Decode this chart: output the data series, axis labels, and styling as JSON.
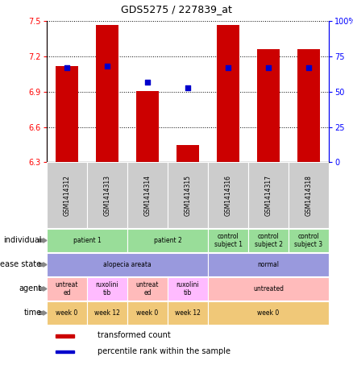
{
  "title": "GDS5275 / 227839_at",
  "samples": [
    "GSM1414312",
    "GSM1414313",
    "GSM1414314",
    "GSM1414315",
    "GSM1414316",
    "GSM1414317",
    "GSM1414318"
  ],
  "bar_values": [
    7.12,
    7.47,
    6.91,
    6.45,
    7.47,
    7.26,
    7.26
  ],
  "bar_base": 6.3,
  "percentile_values": [
    67,
    68,
    57,
    53,
    67,
    67,
    67
  ],
  "ylim_left": [
    6.3,
    7.5
  ],
  "ylim_right": [
    0,
    100
  ],
  "yticks_left": [
    6.3,
    6.6,
    6.9,
    7.2,
    7.5
  ],
  "yticks_right": [
    0,
    25,
    50,
    75,
    100
  ],
  "ytick_labels_right": [
    "0",
    "25",
    "50",
    "75",
    "100%"
  ],
  "bar_color": "#cc0000",
  "dot_color": "#0000cc",
  "annotation_rows": [
    {
      "label": "individual",
      "cells": [
        {
          "text": "patient 1",
          "span": 2,
          "color": "#99dd99"
        },
        {
          "text": "patient 2",
          "span": 2,
          "color": "#99dd99"
        },
        {
          "text": "control\nsubject 1",
          "span": 1,
          "color": "#99dd99"
        },
        {
          "text": "control\nsubject 2",
          "span": 1,
          "color": "#99dd99"
        },
        {
          "text": "control\nsubject 3",
          "span": 1,
          "color": "#99dd99"
        }
      ]
    },
    {
      "label": "disease state",
      "cells": [
        {
          "text": "alopecia areata",
          "span": 4,
          "color": "#9999dd"
        },
        {
          "text": "normal",
          "span": 3,
          "color": "#9999dd"
        }
      ]
    },
    {
      "label": "agent",
      "cells": [
        {
          "text": "untreat\ned",
          "span": 1,
          "color": "#ffbbbb"
        },
        {
          "text": "ruxolini\ntib",
          "span": 1,
          "color": "#ffbbff"
        },
        {
          "text": "untreat\ned",
          "span": 1,
          "color": "#ffbbbb"
        },
        {
          "text": "ruxolini\ntib",
          "span": 1,
          "color": "#ffbbff"
        },
        {
          "text": "untreated",
          "span": 3,
          "color": "#ffbbbb"
        }
      ]
    },
    {
      "label": "time",
      "cells": [
        {
          "text": "week 0",
          "span": 1,
          "color": "#f0c878"
        },
        {
          "text": "week 12",
          "span": 1,
          "color": "#f0c878"
        },
        {
          "text": "week 0",
          "span": 1,
          "color": "#f0c878"
        },
        {
          "text": "week 12",
          "span": 1,
          "color": "#f0c878"
        },
        {
          "text": "week 0",
          "span": 3,
          "color": "#f0c878"
        }
      ]
    }
  ],
  "legend_items": [
    {
      "color": "#cc0000",
      "label": "transformed count"
    },
    {
      "color": "#0000cc",
      "label": "percentile rank within the sample"
    }
  ],
  "sample_label_color": "#cccccc",
  "figsize": [
    4.38,
    4.53
  ],
  "dpi": 100
}
